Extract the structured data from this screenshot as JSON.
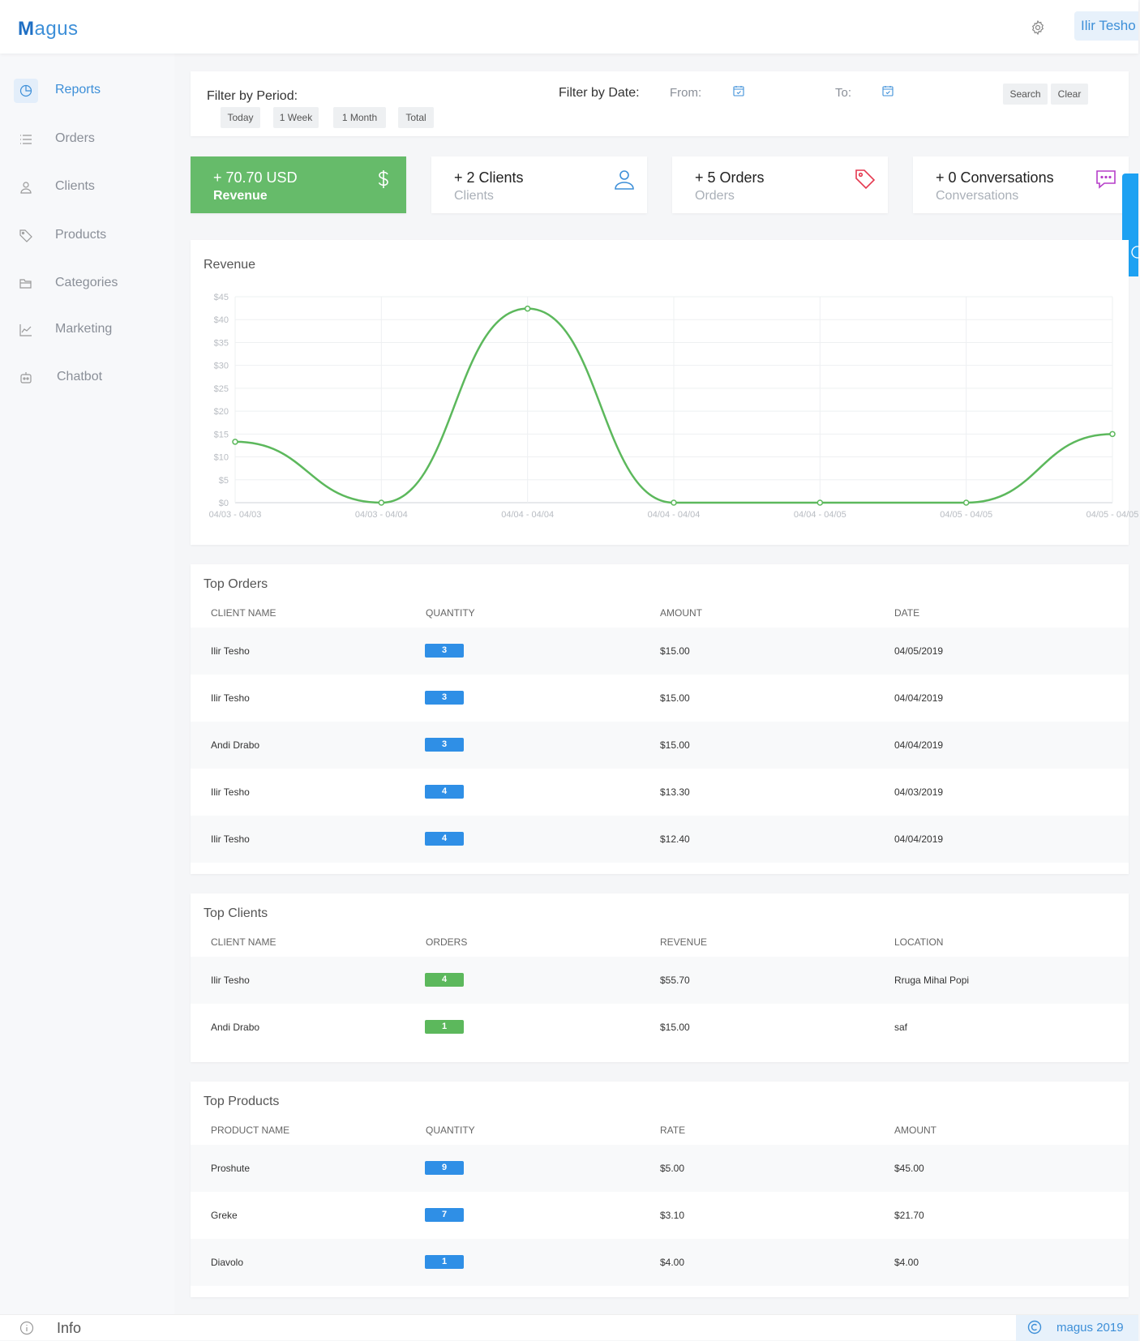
{
  "header": {
    "logo": "agus",
    "logo_initial": "M",
    "user": "Ilir Tesho"
  },
  "sidebar": {
    "items": [
      {
        "label": "Reports",
        "icon": "pie-chart-icon"
      },
      {
        "label": "Orders",
        "icon": "list-icon"
      },
      {
        "label": "Clients",
        "icon": "user-icon"
      },
      {
        "label": "Products",
        "icon": "tag-icon"
      },
      {
        "label": "Categories",
        "icon": "folder-icon"
      },
      {
        "label": "Marketing",
        "icon": "trend-icon"
      },
      {
        "label": "Chatbot",
        "icon": "bot-icon"
      }
    ]
  },
  "filter": {
    "period_label": "Filter by Period:",
    "period_buttons": [
      "Today",
      "1 Week",
      "1 Month",
      "Total"
    ],
    "date_label": "Filter by Date:",
    "from_label": "From:",
    "to_label": "To:",
    "search": "Search",
    "clear": "Clear"
  },
  "stats": [
    {
      "value": "+ 70.70 USD",
      "sub": "Revenue",
      "icon": "dollar-icon"
    },
    {
      "value": "+ 2 Clients",
      "sub": "Clients",
      "icon": "user-icon"
    },
    {
      "value": "+ 5 Orders",
      "sub": "Orders",
      "icon": "tag-icon"
    },
    {
      "value": "+ 0 Conversations",
      "sub": "Conversations",
      "icon": "chat-icon"
    }
  ],
  "colors": {
    "accent": "#3d8fd8",
    "revenue_green": "#66bb6a",
    "line": "#5cb85c",
    "badge_blue": "#2f8fe6",
    "badge_green": "#5cb85c"
  },
  "chart_data": {
    "type": "line",
    "title": "Revenue",
    "x": [
      "04/03 - 04/03",
      "04/03 - 04/04",
      "04/04 - 04/04",
      "04/04 - 04/04",
      "04/04 - 04/05",
      "04/05 - 04/05",
      "04/05 - 04/05"
    ],
    "y_ticks": [
      "$0",
      "$5",
      "$10",
      "$15",
      "$20",
      "$25",
      "$30",
      "$35",
      "$40",
      "$45"
    ],
    "series": [
      {
        "values": [
          13.3,
          0,
          42.4,
          0,
          0,
          0,
          15.0
        ]
      }
    ],
    "ylim": [
      0,
      45
    ],
    "grid": true
  },
  "top_orders": {
    "title": "Top Orders",
    "headers": [
      "CLIENT NAME",
      "QUANTITY",
      "AMOUNT",
      "DATE"
    ],
    "rows": [
      [
        "Ilir Tesho",
        "3",
        "$15.00",
        "04/05/2019"
      ],
      [
        "Ilir Tesho",
        "3",
        "$15.00",
        "04/04/2019"
      ],
      [
        "Andi Drabo",
        "3",
        "$15.00",
        "04/04/2019"
      ],
      [
        "Ilir Tesho",
        "4",
        "$13.30",
        "04/03/2019"
      ],
      [
        "Ilir Tesho",
        "4",
        "$12.40",
        "04/04/2019"
      ]
    ]
  },
  "top_clients": {
    "title": "Top Clients",
    "headers": [
      "CLIENT NAME",
      "ORDERS",
      "REVENUE",
      "LOCATION"
    ],
    "rows": [
      [
        "Ilir Tesho",
        "4",
        "$55.70",
        "Rruga Mihal Popi"
      ],
      [
        "Andi Drabo",
        "1",
        "$15.00",
        "saf"
      ]
    ]
  },
  "top_products": {
    "title": "Top Products",
    "headers": [
      "PRODUCT NAME",
      "QUANTITY",
      "RATE",
      "AMOUNT"
    ],
    "rows": [
      [
        "Proshute",
        "9",
        "$5.00",
        "$45.00"
      ],
      [
        "Greke",
        "7",
        "$3.10",
        "$21.70"
      ],
      [
        "Diavolo",
        "1",
        "$4.00",
        "$4.00"
      ]
    ]
  },
  "footer": {
    "info": "Info",
    "copyright": "magus 2019"
  }
}
